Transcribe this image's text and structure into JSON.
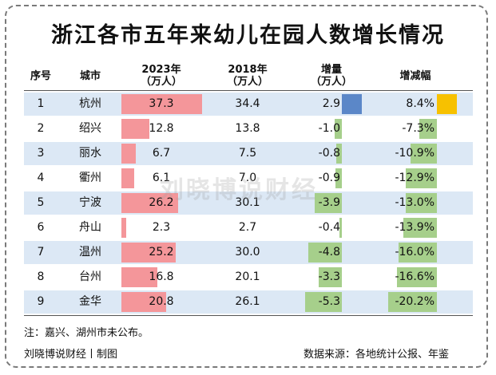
{
  "title": "浙江各市五年来幼儿在园人数增长情况",
  "headers": {
    "index": "序号",
    "city": "城市",
    "y2023": "2023年",
    "y2023_unit": "（万人）",
    "y2018": "2018年",
    "y2018_unit": "（万人）",
    "delta": "增量",
    "delta_unit": "（万人）",
    "rate": "增减幅"
  },
  "watermark": "刘晓博说财经",
  "note": "注：嘉兴、湖州市未公布。",
  "footer_left": "刘晓博说财经丨制图",
  "footer_right": "数据来源：各地统计公报、年鉴",
  "colors": {
    "bar_2023": "#f4969a",
    "bar_delta_pos": "#5b87c8",
    "bar_delta_neg": "#a6cf8b",
    "bar_rate_pos": "#f7c100",
    "bar_rate_neg": "#a6cf8b",
    "row_shade": "#dce8f5"
  },
  "chart_data": {
    "type": "table",
    "columns": [
      "序号",
      "城市",
      "2023年（万人）",
      "2018年（万人）",
      "增量（万人）",
      "增减幅"
    ],
    "rows": [
      {
        "idx": "1",
        "city": "杭州",
        "v2023": 37.3,
        "v2018": 34.4,
        "delta": 2.9,
        "rate": 8.4,
        "v2023_t": "37.3",
        "v2018_t": "34.4",
        "delta_t": "2.9",
        "rate_t": "8.4%"
      },
      {
        "idx": "2",
        "city": "绍兴",
        "v2023": 12.8,
        "v2018": 13.8,
        "delta": -1.0,
        "rate": -7.3,
        "v2023_t": "12.8",
        "v2018_t": "13.8",
        "delta_t": "-1.0",
        "rate_t": "-7.3%"
      },
      {
        "idx": "3",
        "city": "丽水",
        "v2023": 6.7,
        "v2018": 7.5,
        "delta": -0.8,
        "rate": -10.9,
        "v2023_t": "6.7",
        "v2018_t": "7.5",
        "delta_t": "-0.8",
        "rate_t": "-10.9%"
      },
      {
        "idx": "4",
        "city": "衢州",
        "v2023": 6.1,
        "v2018": 7.0,
        "delta": -0.9,
        "rate": -12.9,
        "v2023_t": "6.1",
        "v2018_t": "7.0",
        "delta_t": "-0.9",
        "rate_t": "-12.9%"
      },
      {
        "idx": "5",
        "city": "宁波",
        "v2023": 26.2,
        "v2018": 30.1,
        "delta": -3.9,
        "rate": -13.0,
        "v2023_t": "26.2",
        "v2018_t": "30.1",
        "delta_t": "-3.9",
        "rate_t": "-13.0%"
      },
      {
        "idx": "6",
        "city": "舟山",
        "v2023": 2.3,
        "v2018": 2.7,
        "delta": -0.4,
        "rate": -13.9,
        "v2023_t": "2.3",
        "v2018_t": "2.7",
        "delta_t": "-0.4",
        "rate_t": "-13.9%"
      },
      {
        "idx": "7",
        "city": "温州",
        "v2023": 25.2,
        "v2018": 30.0,
        "delta": -4.8,
        "rate": -16.0,
        "v2023_t": "25.2",
        "v2018_t": "30.0",
        "delta_t": "-4.8",
        "rate_t": "-16.0%"
      },
      {
        "idx": "8",
        "city": "台州",
        "v2023": 16.8,
        "v2018": 20.1,
        "delta": -3.3,
        "rate": -16.6,
        "v2023_t": "16.8",
        "v2018_t": "20.1",
        "delta_t": "-3.3",
        "rate_t": "-16.6%"
      },
      {
        "idx": "9",
        "city": "金华",
        "v2023": 20.8,
        "v2018": 26.1,
        "delta": -5.3,
        "rate": -20.2,
        "v2023_t": "20.8",
        "v2018_t": "26.1",
        "delta_t": "-5.3",
        "rate_t": "-20.2%"
      }
    ]
  }
}
